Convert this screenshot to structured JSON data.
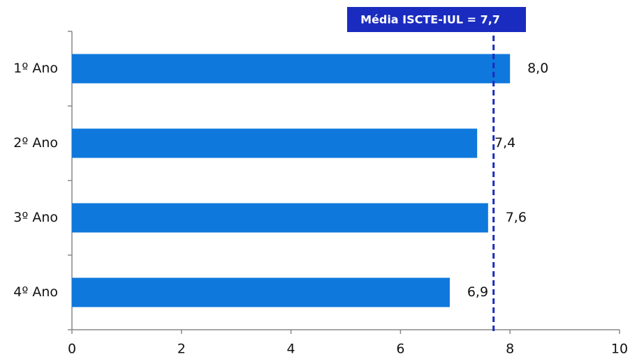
{
  "chart_data": {
    "type": "barh",
    "categories": [
      "1º Ano",
      "2º Ano",
      "3º Ano",
      "4º Ano"
    ],
    "values": [
      8.0,
      7.4,
      7.6,
      6.9
    ],
    "value_labels": [
      "8,0",
      "7,4",
      "7,6",
      "6,9"
    ],
    "color": "#0f78dc",
    "xlim": [
      0,
      10
    ],
    "xticks": [
      0,
      2,
      4,
      6,
      8,
      10
    ],
    "reference_line": {
      "value": 7.7,
      "label": "Média ISCTE-IUL = 7,7",
      "color": "#1a2bbf"
    }
  }
}
